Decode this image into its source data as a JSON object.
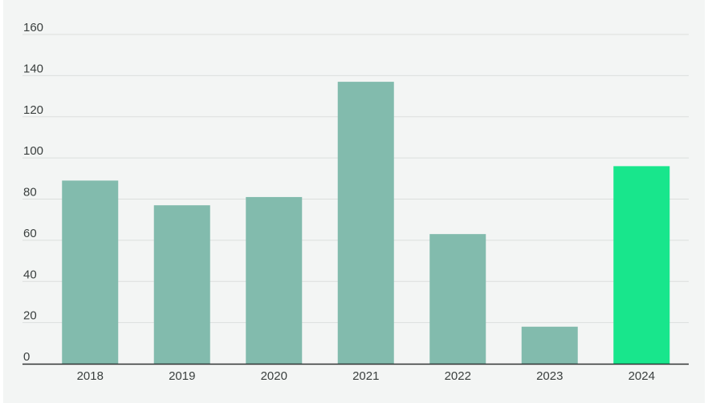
{
  "chart_data": {
    "type": "bar",
    "title": "",
    "xlabel": "",
    "ylabel": "",
    "categories": [
      "2018",
      "2019",
      "2020",
      "2021",
      "2022",
      "2023",
      "2024"
    ],
    "values": [
      89,
      77,
      81,
      137,
      63,
      18,
      96
    ],
    "ylim": [
      0,
      160
    ],
    "yticks": [
      0,
      20,
      40,
      60,
      80,
      100,
      120,
      140,
      160
    ],
    "grid": true,
    "legend": "none",
    "colors": {
      "bar": "#82bbad",
      "highlight_bar": "#18e68c",
      "gridline": "#dcdfdd",
      "axis": "#2f3332",
      "background": "#f3f5f4"
    },
    "highlight_category": "2024"
  }
}
